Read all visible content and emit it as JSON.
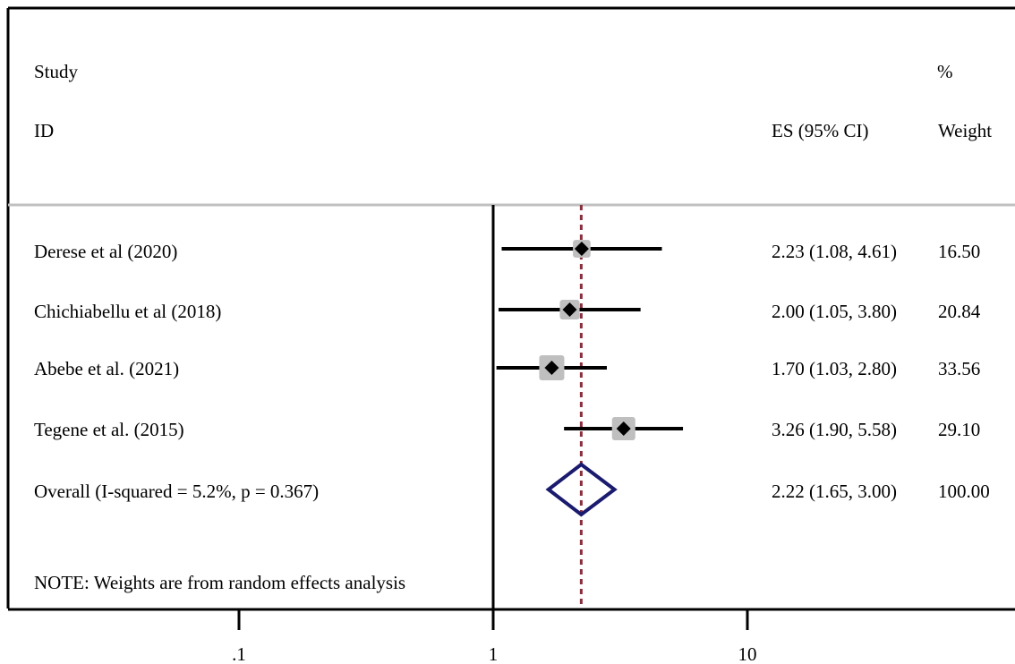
{
  "header": {
    "study_line1": "Study",
    "study_line2": "ID",
    "es_label": "ES (95% CI)",
    "weight_line1": "%",
    "weight_line2": "Weight"
  },
  "note": "NOTE: Weights are from random effects analysis",
  "colors": {
    "ci_line": "#000000",
    "weight_box": "#bfbfbf",
    "point": "#000000",
    "overall_diamond": "#1a1a6e",
    "overall_ref_line": "#8b2e3c"
  },
  "chart_data": {
    "type": "forest",
    "x_scale": "log",
    "xlim": [
      0.06,
      50
    ],
    "null_line": 1,
    "ticks": [
      {
        "value": 0.1,
        "label": ".1"
      },
      {
        "value": 1,
        "label": "1"
      },
      {
        "value": 10,
        "label": "10"
      }
    ],
    "studies": [
      {
        "label": "Derese et al (2020)",
        "es": 2.23,
        "lo": 1.08,
        "hi": 4.61,
        "ci_text": "2.23 (1.08, 4.61)",
        "weight": 16.5,
        "weight_text": "16.50"
      },
      {
        "label": "Chichiabellu et al (2018)",
        "es": 2.0,
        "lo": 1.05,
        "hi": 3.8,
        "ci_text": "2.00 (1.05, 3.80)",
        "weight": 20.84,
        "weight_text": "20.84"
      },
      {
        "label": "Abebe et al. (2021)",
        "es": 1.7,
        "lo": 1.03,
        "hi": 2.8,
        "ci_text": "1.70 (1.03, 2.80)",
        "weight": 33.56,
        "weight_text": "33.56"
      },
      {
        "label": "Tegene et al. (2015)",
        "es": 3.26,
        "lo": 1.9,
        "hi": 5.58,
        "ci_text": "3.26 (1.90, 5.58)",
        "weight": 29.1,
        "weight_text": "29.10"
      }
    ],
    "overall": {
      "label": "Overall  (I-squared = 5.2%, p = 0.367)",
      "es": 2.22,
      "lo": 1.65,
      "hi": 3.0,
      "ci_text": "2.22 (1.65, 3.00)",
      "weight_text": "100.00"
    }
  }
}
